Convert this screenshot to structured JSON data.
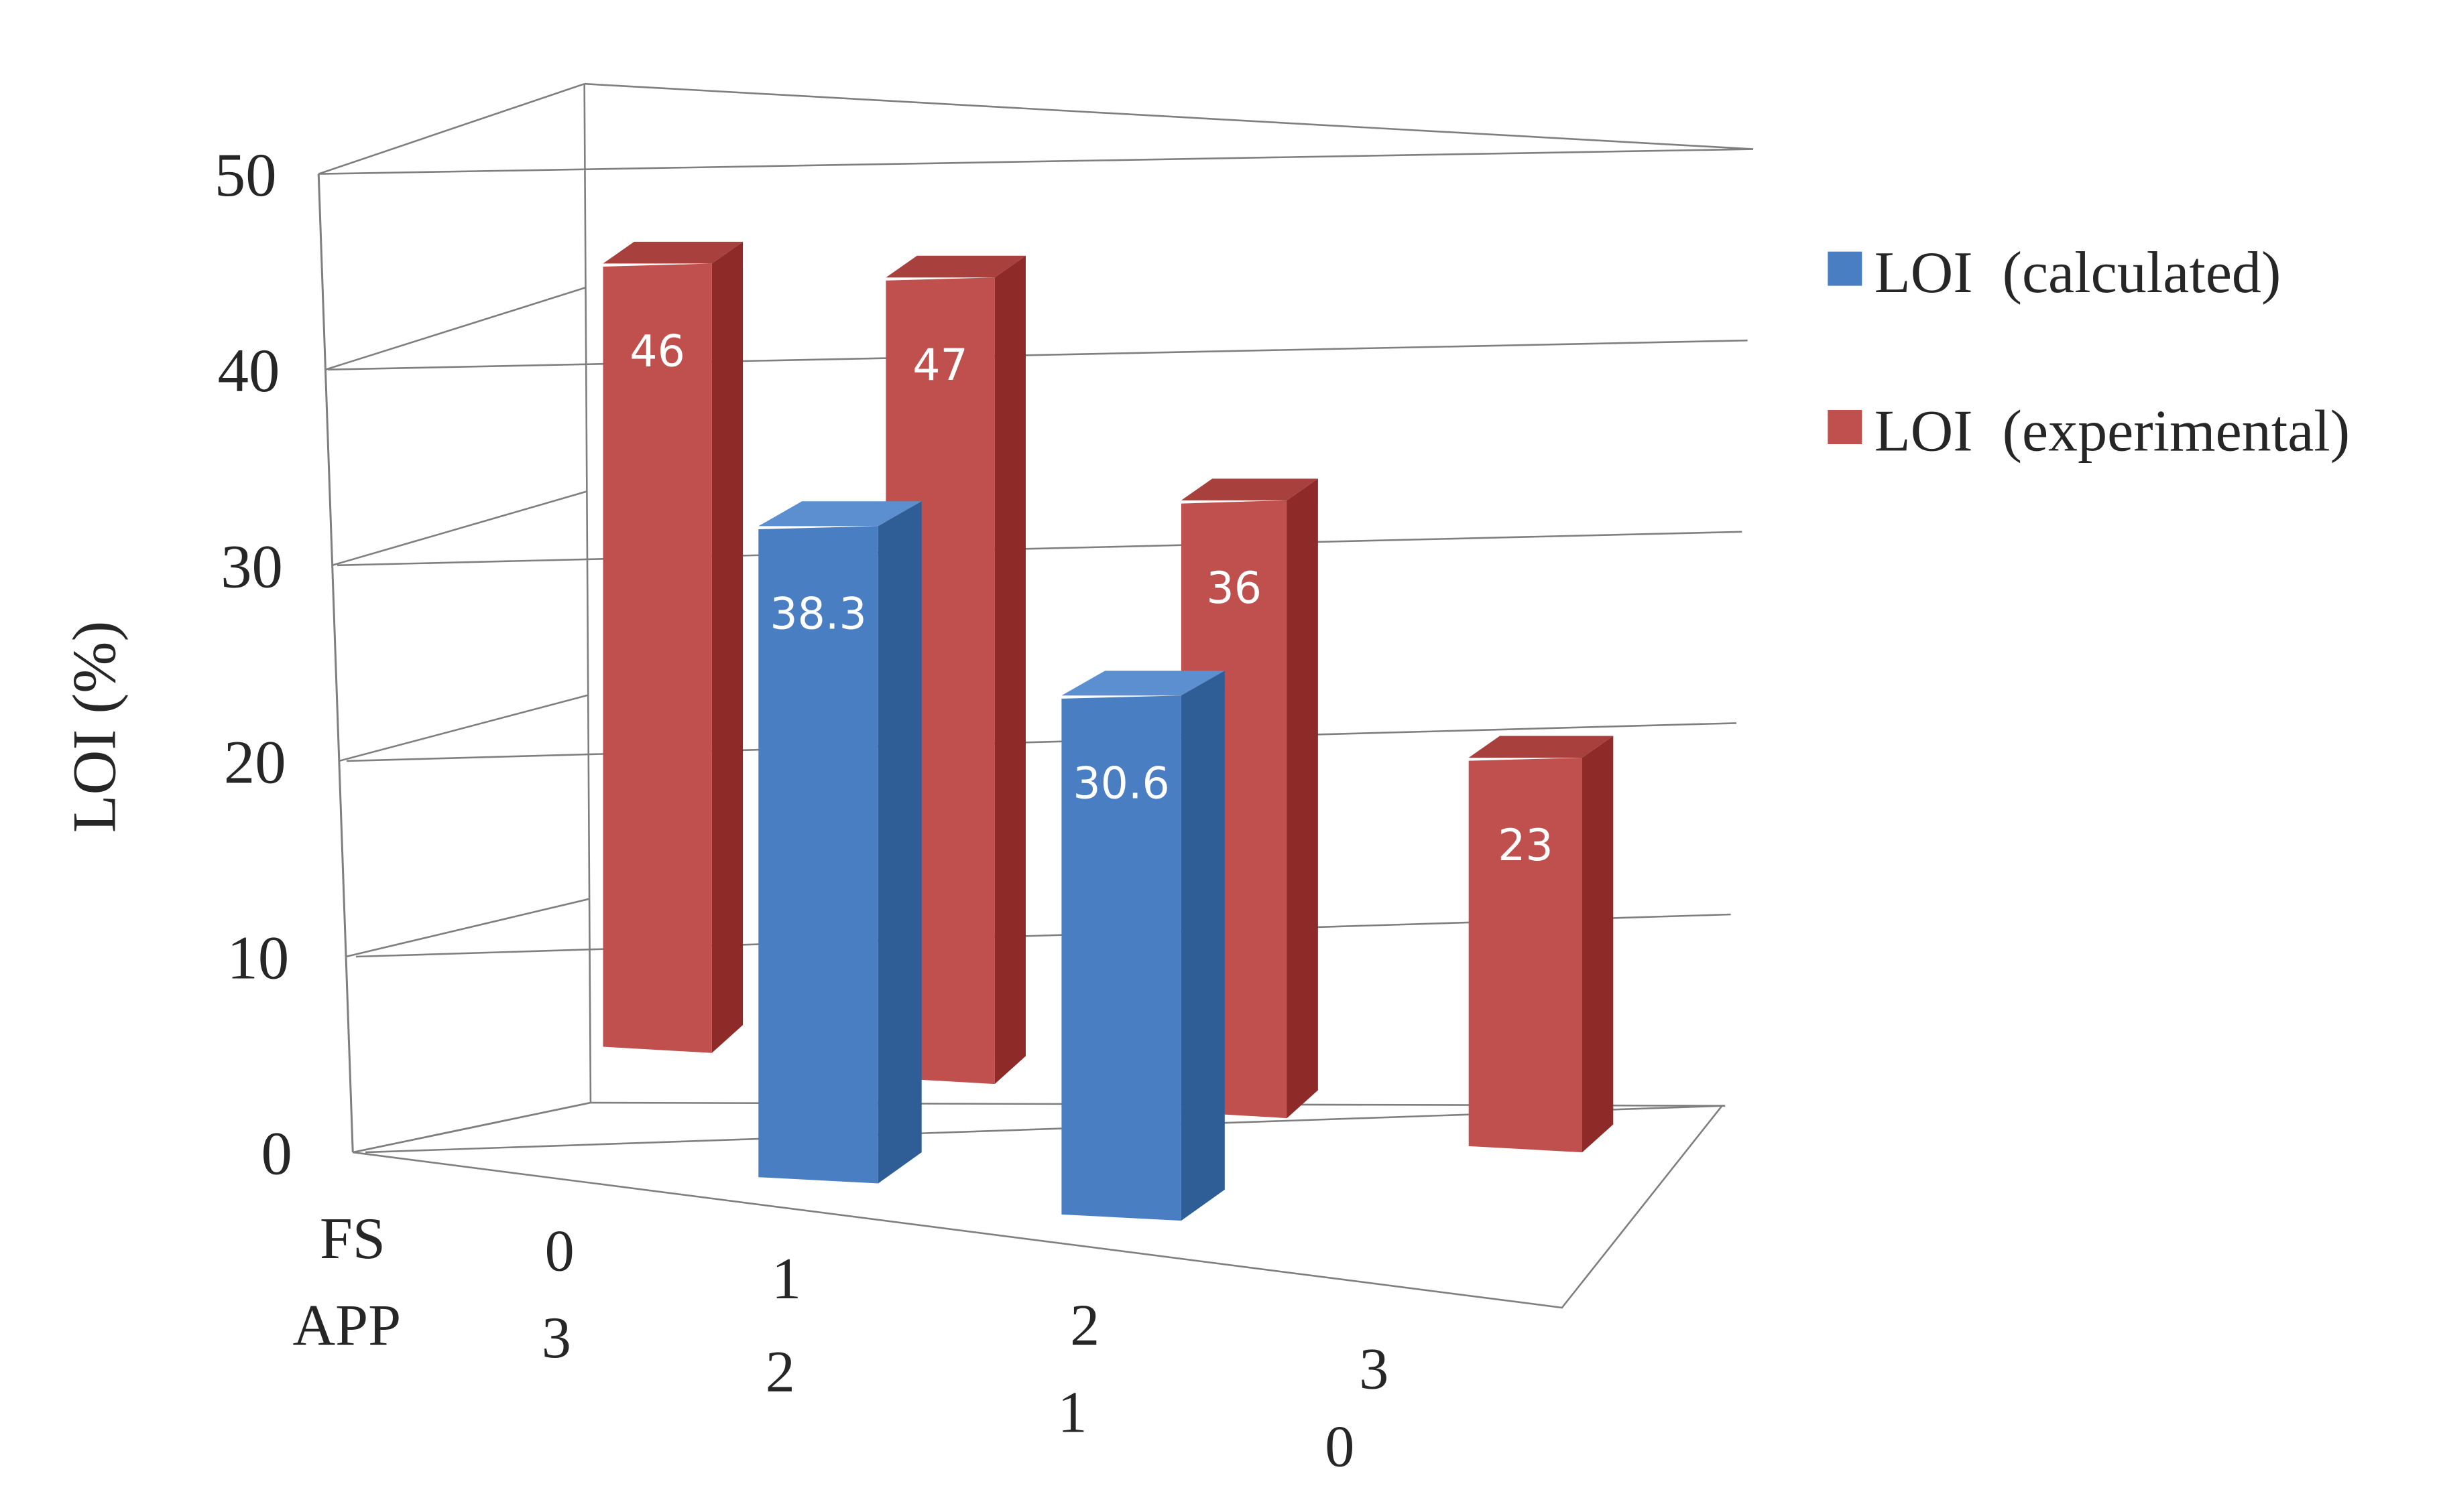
{
  "chart_data": {
    "type": "bar",
    "title": "",
    "xlabel": "",
    "ylabel": "LOI  (%)",
    "ylim": [
      0,
      50
    ],
    "yticks": [
      0,
      10,
      20,
      30,
      40,
      50
    ],
    "grid": true,
    "legend_position": "right",
    "category_axes": [
      {
        "label": "FS",
        "values": [
          "0",
          "1",
          "2",
          "3"
        ]
      },
      {
        "label": "APP",
        "values": [
          "3",
          "2",
          "1",
          "0"
        ]
      }
    ],
    "categories": [
      "FS 0 / APP 3",
      "FS 1 / APP 2",
      "FS 2 / APP 1",
      "FS 3 / APP 0"
    ],
    "series": [
      {
        "name": "LOI  (calculated)",
        "color": "#4A7EC3",
        "values": [
          null,
          38.3,
          30.6,
          null
        ],
        "labels": [
          "",
          "38.3",
          "30.6",
          ""
        ]
      },
      {
        "name": "LOI  (experimental)",
        "color": "#C0504D",
        "values": [
          46,
          47,
          36,
          23
        ],
        "labels": [
          "46",
          "47",
          "36",
          "23"
        ]
      }
    ]
  },
  "colors": {
    "calculated_front": "#4A7EC3",
    "calculated_side": "#2F5D95",
    "calculated_top": "#5B8FD0",
    "experimental_front": "#C0504D",
    "experimental_side": "#8E2A28",
    "experimental_top": "#A8403D",
    "axis": "#7F7F7F",
    "text": "#262626",
    "bar_label": "#FFFFFF"
  }
}
